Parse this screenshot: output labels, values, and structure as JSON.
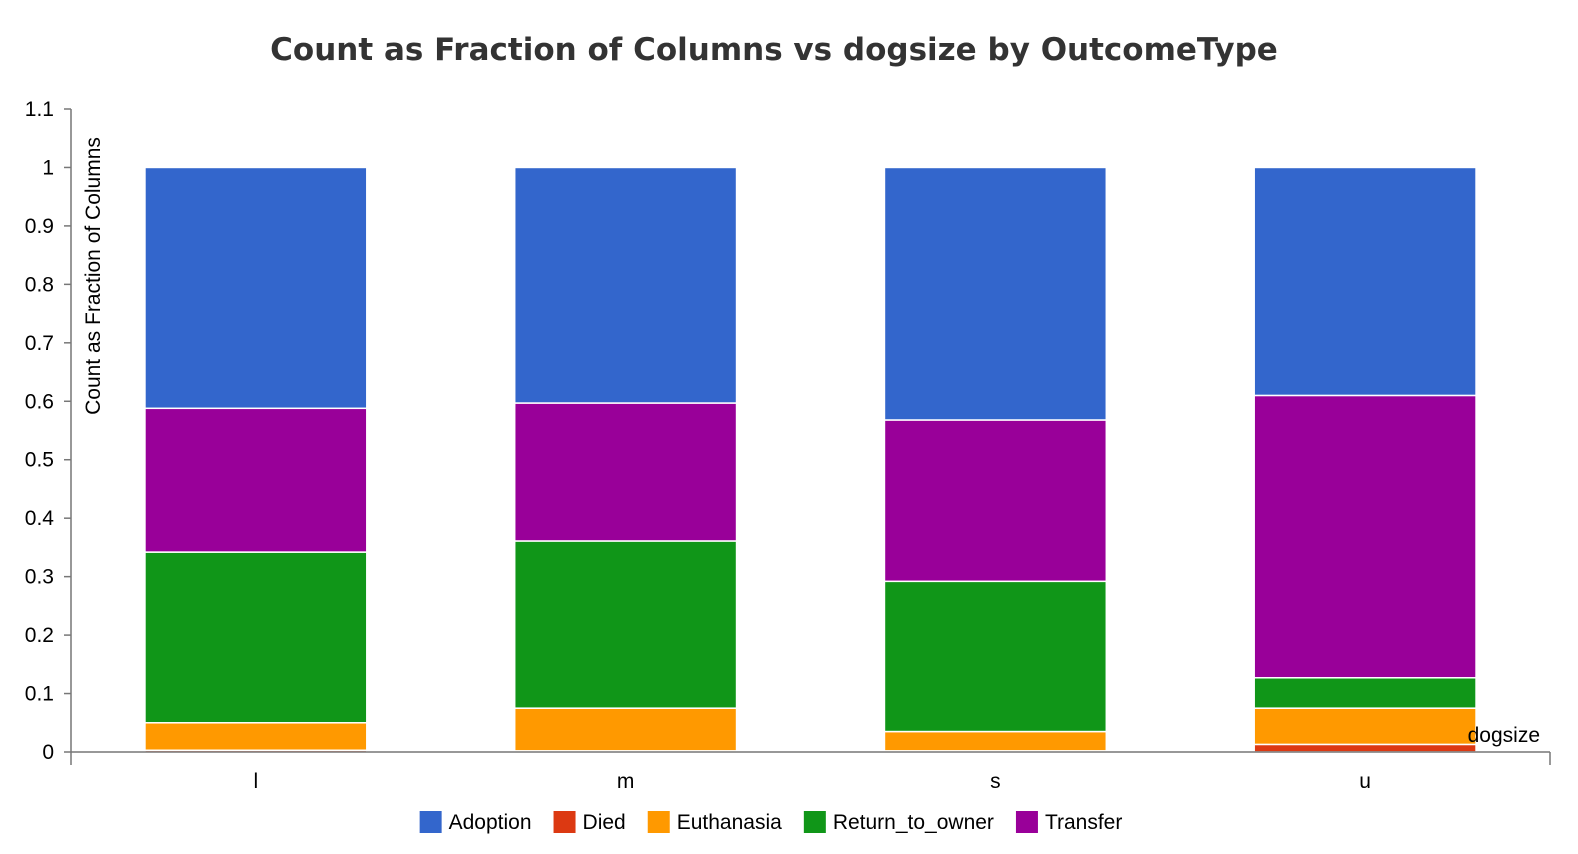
{
  "chart_data": {
    "type": "bar",
    "stacked": true,
    "title": "Count as Fraction of Columns vs dogsize by OutcomeType",
    "xlabel": "dogsize",
    "ylabel": "Count as Fraction of Columns",
    "ylim": [
      0,
      1.1
    ],
    "yticks": [
      "0",
      "0.1",
      "0.2",
      "0.3",
      "0.4",
      "0.5",
      "0.6",
      "0.7",
      "0.8",
      "0.9",
      "1",
      "1.1"
    ],
    "categories": [
      "l",
      "m",
      "s",
      "u"
    ],
    "series": [
      {
        "name": "Died",
        "color": "#dc3912",
        "values": [
          0.003,
          0.002,
          0.002,
          0.013
        ]
      },
      {
        "name": "Euthanasia",
        "color": "#ff9900",
        "values": [
          0.047,
          0.073,
          0.033,
          0.062
        ]
      },
      {
        "name": "Return_to_owner",
        "color": "#109618",
        "values": [
          0.292,
          0.286,
          0.257,
          0.052
        ]
      },
      {
        "name": "Transfer",
        "color": "#990099",
        "values": [
          0.246,
          0.236,
          0.276,
          0.483
        ]
      },
      {
        "name": "Adoption",
        "color": "#3366cc",
        "values": [
          0.412,
          0.403,
          0.432,
          0.39
        ]
      }
    ],
    "legend_order": [
      "Adoption",
      "Died",
      "Euthanasia",
      "Return_to_owner",
      "Transfer"
    ],
    "legend_position": "bottom",
    "grid": false
  }
}
